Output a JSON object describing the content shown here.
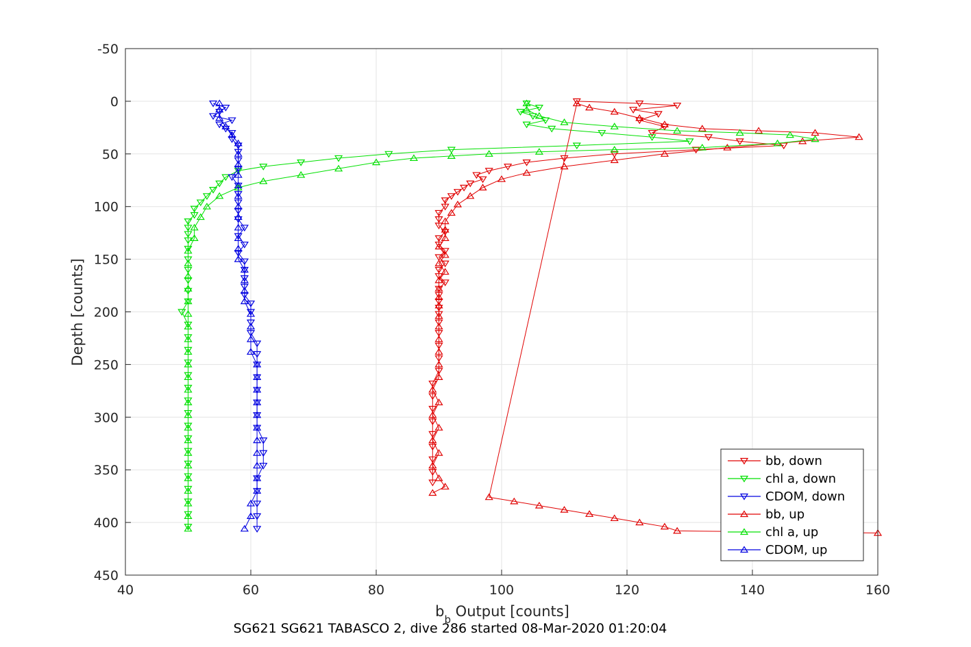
{
  "caption": "SG621 SG621 TABASCO 2, dive 286 started 08-Mar-2020 01:20:04",
  "chart_data": {
    "type": "line",
    "title": "",
    "xlabel_main": "b",
    "xlabel_sub": "b",
    "xlabel_rest": " Output [counts]",
    "ylabel": "Depth [counts]",
    "xlim": [
      40,
      160
    ],
    "ylim": [
      -50,
      450
    ],
    "y_reversed": true,
    "grid": true,
    "legend_position": "lower-right",
    "xticks": [
      "40",
      "60",
      "80",
      "100",
      "120",
      "140",
      "160"
    ],
    "yticks": [
      "-50",
      "0",
      "50",
      "100",
      "150",
      "200",
      "250",
      "300",
      "350",
      "400",
      "450"
    ],
    "series": [
      {
        "name": "bb, down",
        "color": "#e00000",
        "marker": "triangle-down",
        "points": [
          [
            112,
            0
          ],
          [
            122,
            2
          ],
          [
            128,
            4
          ],
          [
            121,
            8
          ],
          [
            125,
            12
          ],
          [
            122,
            18
          ],
          [
            126,
            24
          ],
          [
            124,
            30
          ],
          [
            133,
            34
          ],
          [
            138,
            38
          ],
          [
            145,
            42
          ],
          [
            131,
            46
          ],
          [
            118,
            50
          ],
          [
            110,
            54
          ],
          [
            104,
            58
          ],
          [
            101,
            62
          ],
          [
            98,
            66
          ],
          [
            96,
            70
          ],
          [
            97,
            74
          ],
          [
            95,
            78
          ],
          [
            94,
            82
          ],
          [
            93,
            86
          ],
          [
            92,
            90
          ],
          [
            91,
            94
          ],
          [
            91,
            100
          ],
          [
            90,
            106
          ],
          [
            90,
            112
          ],
          [
            90,
            118
          ],
          [
            91,
            124
          ],
          [
            90,
            130
          ],
          [
            90,
            136
          ],
          [
            91,
            142
          ],
          [
            90,
            148
          ],
          [
            91,
            154
          ],
          [
            90,
            160
          ],
          [
            90,
            166
          ],
          [
            91,
            172
          ],
          [
            90,
            178
          ],
          [
            90,
            184
          ],
          [
            90,
            190
          ],
          [
            90,
            196
          ],
          [
            90,
            202
          ],
          [
            90,
            210
          ],
          [
            90,
            220
          ],
          [
            90,
            232
          ],
          [
            90,
            244
          ],
          [
            90,
            256
          ],
          [
            89,
            268
          ],
          [
            89,
            280
          ],
          [
            89,
            292
          ],
          [
            89,
            304
          ],
          [
            89,
            316
          ],
          [
            89,
            328
          ],
          [
            89,
            340
          ],
          [
            89,
            352
          ],
          [
            89,
            362
          ]
        ]
      },
      {
        "name": "chl a, down",
        "color": "#00e000",
        "marker": "triangle-down",
        "points": [
          [
            104,
            2
          ],
          [
            106,
            6
          ],
          [
            103,
            10
          ],
          [
            105,
            14
          ],
          [
            107,
            18
          ],
          [
            104,
            22
          ],
          [
            108,
            26
          ],
          [
            116,
            30
          ],
          [
            124,
            34
          ],
          [
            130,
            38
          ],
          [
            112,
            42
          ],
          [
            92,
            46
          ],
          [
            82,
            50
          ],
          [
            74,
            54
          ],
          [
            68,
            58
          ],
          [
            62,
            62
          ],
          [
            58,
            66
          ],
          [
            56,
            72
          ],
          [
            55,
            78
          ],
          [
            54,
            84
          ],
          [
            53,
            90
          ],
          [
            52,
            96
          ],
          [
            51,
            102
          ],
          [
            51,
            108
          ],
          [
            50,
            114
          ],
          [
            50,
            120
          ],
          [
            50,
            126
          ],
          [
            50,
            132
          ],
          [
            50,
            140
          ],
          [
            50,
            150
          ],
          [
            50,
            160
          ],
          [
            50,
            170
          ],
          [
            50,
            180
          ],
          [
            50,
            190
          ],
          [
            49,
            200
          ],
          [
            50,
            212
          ],
          [
            50,
            224
          ],
          [
            50,
            236
          ],
          [
            50,
            248
          ],
          [
            50,
            260
          ],
          [
            50,
            272
          ],
          [
            50,
            284
          ],
          [
            50,
            296
          ],
          [
            50,
            308
          ],
          [
            50,
            320
          ],
          [
            50,
            332
          ],
          [
            50,
            344
          ],
          [
            50,
            356
          ],
          [
            50,
            368
          ],
          [
            50,
            380
          ],
          [
            50,
            392
          ],
          [
            50,
            404
          ]
        ]
      },
      {
        "name": "CDOM, down",
        "color": "#0000e0",
        "marker": "triangle-down",
        "points": [
          [
            54,
            2
          ],
          [
            56,
            6
          ],
          [
            55,
            10
          ],
          [
            54,
            14
          ],
          [
            57,
            18
          ],
          [
            55,
            22
          ],
          [
            56,
            26
          ],
          [
            57,
            30
          ],
          [
            57,
            36
          ],
          [
            58,
            42
          ],
          [
            58,
            48
          ],
          [
            58,
            56
          ],
          [
            58,
            64
          ],
          [
            57,
            72
          ],
          [
            58,
            80
          ],
          [
            58,
            88
          ],
          [
            58,
            96
          ],
          [
            58,
            104
          ],
          [
            58,
            112
          ],
          [
            59,
            120
          ],
          [
            58,
            128
          ],
          [
            59,
            136
          ],
          [
            58,
            144
          ],
          [
            59,
            152
          ],
          [
            59,
            160
          ],
          [
            59,
            168
          ],
          [
            59,
            176
          ],
          [
            59,
            184
          ],
          [
            60,
            192
          ],
          [
            60,
            200
          ],
          [
            60,
            210
          ],
          [
            60,
            220
          ],
          [
            61,
            230
          ],
          [
            61,
            240
          ],
          [
            61,
            250
          ],
          [
            61,
            262
          ],
          [
            61,
            274
          ],
          [
            61,
            286
          ],
          [
            61,
            298
          ],
          [
            61,
            310
          ],
          [
            62,
            322
          ],
          [
            62,
            334
          ],
          [
            62,
            346
          ],
          [
            61,
            358
          ],
          [
            61,
            370
          ],
          [
            61,
            382
          ],
          [
            61,
            394
          ],
          [
            61,
            406
          ]
        ]
      },
      {
        "name": "bb, up",
        "color": "#e00000",
        "marker": "triangle-up",
        "points": [
          [
            89,
            372
          ],
          [
            91,
            366
          ],
          [
            90,
            358
          ],
          [
            89,
            346
          ],
          [
            90,
            334
          ],
          [
            89,
            322
          ],
          [
            90,
            310
          ],
          [
            89,
            298
          ],
          [
            90,
            286
          ],
          [
            89,
            274
          ],
          [
            90,
            262
          ],
          [
            90,
            250
          ],
          [
            90,
            238
          ],
          [
            90,
            226
          ],
          [
            90,
            214
          ],
          [
            90,
            204
          ],
          [
            90,
            194
          ],
          [
            90,
            186
          ],
          [
            90,
            178
          ],
          [
            90,
            170
          ],
          [
            91,
            162
          ],
          [
            90,
            154
          ],
          [
            91,
            146
          ],
          [
            90,
            138
          ],
          [
            91,
            130
          ],
          [
            91,
            122
          ],
          [
            91,
            114
          ],
          [
            92,
            106
          ],
          [
            93,
            98
          ],
          [
            95,
            90
          ],
          [
            97,
            82
          ],
          [
            100,
            74
          ],
          [
            104,
            68
          ],
          [
            110,
            62
          ],
          [
            118,
            56
          ],
          [
            126,
            50
          ],
          [
            136,
            44
          ],
          [
            148,
            38
          ],
          [
            157,
            34
          ],
          [
            150,
            30
          ],
          [
            141,
            28
          ],
          [
            132,
            26
          ],
          [
            126,
            22
          ],
          [
            122,
            16
          ],
          [
            118,
            10
          ],
          [
            114,
            6
          ],
          [
            112,
            2
          ],
          [
            98,
            376
          ],
          [
            102,
            380
          ],
          [
            106,
            384
          ],
          [
            110,
            388
          ],
          [
            114,
            392
          ],
          [
            118,
            396
          ],
          [
            122,
            400
          ],
          [
            126,
            404
          ],
          [
            128,
            408
          ],
          [
            160,
            410
          ]
        ]
      },
      {
        "name": "chl a, up",
        "color": "#00e000",
        "marker": "triangle-up",
        "points": [
          [
            50,
            406
          ],
          [
            50,
            394
          ],
          [
            50,
            382
          ],
          [
            50,
            370
          ],
          [
            50,
            358
          ],
          [
            50,
            346
          ],
          [
            50,
            334
          ],
          [
            50,
            322
          ],
          [
            50,
            310
          ],
          [
            50,
            298
          ],
          [
            50,
            286
          ],
          [
            50,
            274
          ],
          [
            50,
            262
          ],
          [
            50,
            250
          ],
          [
            50,
            238
          ],
          [
            50,
            226
          ],
          [
            50,
            214
          ],
          [
            50,
            202
          ],
          [
            50,
            190
          ],
          [
            50,
            178
          ],
          [
            50,
            166
          ],
          [
            50,
            154
          ],
          [
            50,
            142
          ],
          [
            51,
            130
          ],
          [
            51,
            120
          ],
          [
            52,
            110
          ],
          [
            53,
            100
          ],
          [
            55,
            90
          ],
          [
            58,
            82
          ],
          [
            62,
            76
          ],
          [
            68,
            70
          ],
          [
            74,
            64
          ],
          [
            80,
            58
          ],
          [
            86,
            54
          ],
          [
            92,
            52
          ],
          [
            98,
            50
          ],
          [
            106,
            48
          ],
          [
            118,
            46
          ],
          [
            132,
            44
          ],
          [
            144,
            40
          ],
          [
            150,
            36
          ],
          [
            146,
            32
          ],
          [
            138,
            30
          ],
          [
            128,
            28
          ],
          [
            118,
            24
          ],
          [
            110,
            20
          ],
          [
            106,
            14
          ],
          [
            104,
            8
          ],
          [
            104,
            2
          ]
        ]
      },
      {
        "name": "CDOM, up",
        "color": "#0000e0",
        "marker": "triangle-up",
        "points": [
          [
            59,
            406
          ],
          [
            60,
            394
          ],
          [
            60,
            382
          ],
          [
            61,
            370
          ],
          [
            61,
            358
          ],
          [
            61,
            346
          ],
          [
            61,
            334
          ],
          [
            61,
            322
          ],
          [
            61,
            310
          ],
          [
            61,
            298
          ],
          [
            61,
            286
          ],
          [
            61,
            274
          ],
          [
            61,
            262
          ],
          [
            61,
            250
          ],
          [
            60,
            238
          ],
          [
            60,
            226
          ],
          [
            60,
            214
          ],
          [
            60,
            202
          ],
          [
            59,
            190
          ],
          [
            59,
            180
          ],
          [
            59,
            170
          ],
          [
            59,
            160
          ],
          [
            58,
            150
          ],
          [
            58,
            140
          ],
          [
            58,
            130
          ],
          [
            58,
            120
          ],
          [
            58,
            110
          ],
          [
            58,
            100
          ],
          [
            58,
            90
          ],
          [
            58,
            80
          ],
          [
            58,
            70
          ],
          [
            58,
            60
          ],
          [
            58,
            50
          ],
          [
            58,
            40
          ],
          [
            57,
            32
          ],
          [
            56,
            24
          ],
          [
            55,
            16
          ],
          [
            55,
            8
          ],
          [
            55,
            2
          ]
        ]
      }
    ]
  }
}
